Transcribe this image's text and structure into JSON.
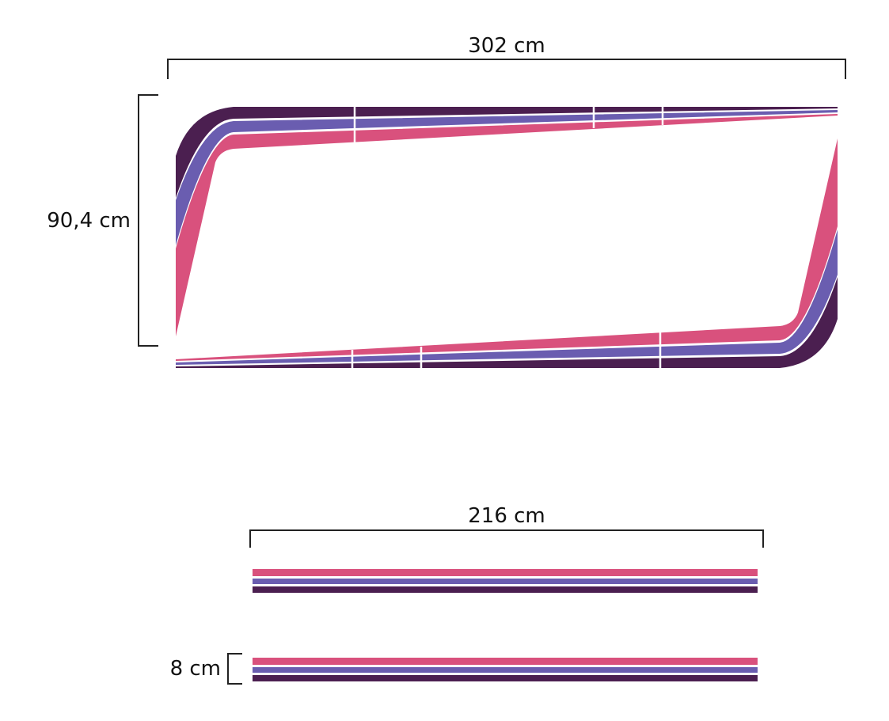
{
  "dimensions": {
    "top_width": "302 cm",
    "top_height": "90,4 cm",
    "strip_length": "216 cm",
    "strip_height": "8 cm"
  },
  "colors": {
    "dark_purple": "#4b1f50",
    "purple": "#6a5db0",
    "pink": "#d9517d",
    "separator": "#ffffff",
    "dimension_line": "#222222"
  }
}
